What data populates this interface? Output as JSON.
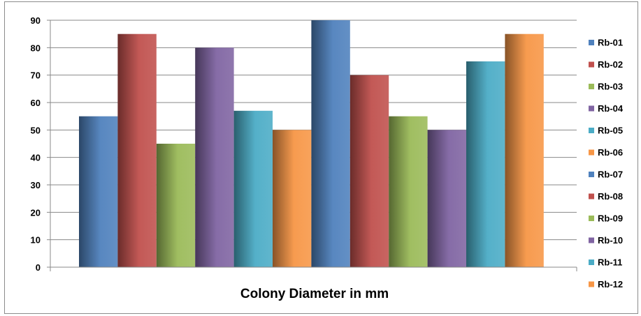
{
  "chart_data": {
    "type": "bar",
    "title": "",
    "xlabel": "Colony Diameter in mm",
    "ylabel": "",
    "ylim": [
      0,
      90
    ],
    "yticks": [
      0,
      10,
      20,
      30,
      40,
      50,
      60,
      70,
      80,
      90
    ],
    "grid": true,
    "legend_position": "right",
    "series": [
      {
        "name": "Rb-01",
        "value": 55,
        "color": "#4f81bd"
      },
      {
        "name": "Rb-02",
        "value": 85,
        "color": "#c0504d"
      },
      {
        "name": "Rb-03",
        "value": 45,
        "color": "#9bbb59"
      },
      {
        "name": "Rb-04",
        "value": 80,
        "color": "#8064a2"
      },
      {
        "name": "Rb-05",
        "value": 57,
        "color": "#4bacc6"
      },
      {
        "name": "Rb-06",
        "value": 50,
        "color": "#f79646"
      },
      {
        "name": "Rb-07",
        "value": 90,
        "color": "#4f81bd"
      },
      {
        "name": "Rb-08",
        "value": 70,
        "color": "#c0504d"
      },
      {
        "name": "Rb-09",
        "value": 55,
        "color": "#9bbb59"
      },
      {
        "name": "Rb-10",
        "value": 50,
        "color": "#8064a2"
      },
      {
        "name": "Rb-11",
        "value": 75,
        "color": "#4bacc6"
      },
      {
        "name": "Rb-12",
        "value": 85,
        "color": "#f79646"
      }
    ]
  }
}
